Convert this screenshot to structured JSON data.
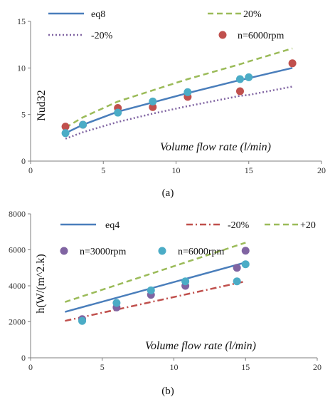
{
  "colors": {
    "blue": "#4a7ebb",
    "green": "#9bbb59",
    "purple": "#8064a2",
    "red": "#c0504d",
    "red_marker": "#c0504d",
    "cyan_marker": "#4bacc6",
    "purple_marker": "#8064a2"
  },
  "chart_data": [
    {
      "type": "line",
      "panel_label": "(a)",
      "title": "",
      "xlabel": "Volume flow rate (l/min)",
      "ylabel": "Nud32",
      "xlim": [
        0,
        20
      ],
      "ylim": [
        0,
        15
      ],
      "xticks": [
        0,
        5,
        10,
        15,
        20
      ],
      "yticks": [
        0,
        5,
        10,
        15
      ],
      "xtick_labels": [
        "0",
        "5",
        "10",
        "15",
        "20"
      ],
      "ytick_labels": [
        "0",
        "5",
        "10",
        "15"
      ],
      "grid": false,
      "legend": [
        "eq8",
        "20%",
        "-20%",
        "n=6000rpm"
      ],
      "series": [
        {
          "name": "eq8",
          "kind": "line",
          "style": "solid",
          "color": "#4a7ebb",
          "x": [
            2.4,
            3.6,
            6.0,
            8.4,
            10.8,
            14.4,
            15.0,
            18.0
          ],
          "y": [
            3.0,
            3.9,
            5.3,
            6.3,
            7.3,
            8.7,
            8.9,
            10.0
          ]
        },
        {
          "name": "20%",
          "kind": "line",
          "style": "dashed",
          "color": "#9bbb59",
          "x": [
            2.4,
            3.6,
            6.0,
            8.4,
            10.8,
            14.4,
            15.0,
            18.0
          ],
          "y": [
            3.6,
            4.7,
            6.4,
            7.6,
            8.8,
            10.4,
            10.7,
            12.1
          ]
        },
        {
          "name": "-20%",
          "kind": "line",
          "style": "dotted",
          "color": "#8064a2",
          "x": [
            2.4,
            3.6,
            6.0,
            8.4,
            10.8,
            14.4,
            15.0,
            18.0
          ],
          "y": [
            2.4,
            3.1,
            4.2,
            5.1,
            5.9,
            7.0,
            7.1,
            8.0
          ]
        },
        {
          "name": "n=6000rpm",
          "kind": "scatter",
          "color": "#c0504d",
          "x": [
            2.4,
            3.6,
            6.0,
            8.4,
            10.8,
            14.4,
            18.0
          ],
          "y": [
            3.7,
            3.9,
            5.7,
            5.8,
            6.9,
            7.5,
            10.5
          ]
        },
        {
          "name": "",
          "kind": "scatter",
          "color": "#4bacc6",
          "x": [
            2.4,
            3.6,
            6.0,
            8.4,
            10.8,
            14.4,
            15.0
          ],
          "y": [
            3.0,
            3.9,
            5.2,
            6.4,
            7.4,
            8.8,
            9.0
          ]
        }
      ]
    },
    {
      "type": "line",
      "panel_label": "(b)",
      "title": "",
      "xlabel": "Volume flow rate (l/min)",
      "ylabel": "h(W/(m^2.k)",
      "xlim": [
        0,
        20
      ],
      "ylim": [
        0,
        8000
      ],
      "xticks": [
        0,
        5,
        10,
        15,
        20
      ],
      "yticks": [
        0,
        2000,
        4000,
        6000,
        8000
      ],
      "xtick_labels": [
        "0",
        "5",
        "10",
        "15",
        "20"
      ],
      "ytick_labels": [
        "0",
        "2000",
        "4000",
        "6000",
        "8000"
      ],
      "grid": false,
      "legend": [
        "eq4",
        "-20%",
        "+20",
        "n=3000rpm",
        "n=6000rpm"
      ],
      "series": [
        {
          "name": "eq4",
          "kind": "line",
          "style": "solid",
          "color": "#4a7ebb",
          "x": [
            2.4,
            15.0
          ],
          "y": [
            2550,
            5300
          ]
        },
        {
          "name": "-20%",
          "kind": "line",
          "style": "dashdot",
          "color": "#c0504d",
          "x": [
            2.4,
            15.0
          ],
          "y": [
            2050,
            4250
          ]
        },
        {
          "name": "+20",
          "kind": "line",
          "style": "dashed",
          "color": "#9bbb59",
          "x": [
            2.4,
            15.0
          ],
          "y": [
            3100,
            6400
          ]
        },
        {
          "name": "n=3000rpm",
          "kind": "scatter",
          "color": "#8064a2",
          "x": [
            3.6,
            6.0,
            8.4,
            10.8,
            14.4,
            15.0
          ],
          "y": [
            2150,
            2800,
            3500,
            4000,
            5000,
            5950
          ]
        },
        {
          "name": "n=6000rpm",
          "kind": "scatter",
          "color": "#4bacc6",
          "x": [
            3.6,
            6.0,
            8.4,
            10.8,
            14.4,
            15.0
          ],
          "y": [
            2050,
            3050,
            3750,
            4250,
            4250,
            5200
          ]
        }
      ]
    }
  ]
}
